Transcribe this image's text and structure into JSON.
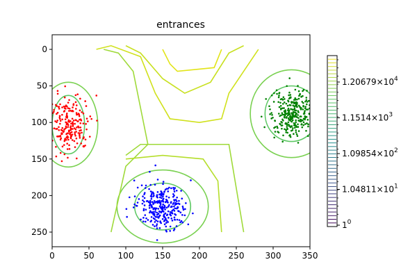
{
  "chart_data": {
    "type": "scatter",
    "title": "entrances",
    "xlabel": "",
    "ylabel": "",
    "xlim": [
      0,
      350
    ],
    "ylim": [
      270,
      -20
    ],
    "y_inverted": true,
    "x_ticks": [
      "0",
      "50",
      "100",
      "150",
      "200",
      "250",
      "300",
      "350"
    ],
    "y_ticks": [
      "0",
      "50",
      "100",
      "150",
      "200",
      "250"
    ],
    "clusters": [
      {
        "color": "#ff0000",
        "center": [
          22,
          103
        ],
        "spread": [
          14,
          20
        ],
        "count": 230
      },
      {
        "color": "#0000ff",
        "center": [
          150,
          215
        ],
        "spread": [
          17,
          14
        ],
        "count": 300
      },
      {
        "color": "#008000",
        "center": [
          325,
          88
        ],
        "spread": [
          14,
          17
        ],
        "count": 300
      }
    ],
    "contour_levels": [
      {
        "color": "#5cc863",
        "rings": [
          {
            "center": [
              22,
              103
            ],
            "r": [
              22,
              40
            ]
          },
          {
            "center": [
              150,
              215
            ],
            "r": [
              38,
              32
            ]
          },
          {
            "center": [
              325,
              88
            ],
            "r": [
              36,
              38
            ]
          }
        ]
      },
      {
        "color": "#7ad151",
        "rings": [
          {
            "center": [
              22,
              103
            ],
            "r": [
              40,
              58
            ]
          },
          {
            "center": [
              150,
              215
            ],
            "r": [
              62,
              50
            ]
          },
          {
            "center": [
              325,
              88
            ],
            "r": [
              56,
              60
            ]
          }
        ]
      }
    ],
    "colorbar": {
      "scale": "log",
      "tick_labels": [
        "10^0",
        "1.04811×10^1",
        "1.09854×10^2",
        "1.1514×10^3",
        "1.20679×10^4"
      ],
      "display": [
        {
          "base": "1",
          "exp": "0"
        },
        {
          "base": "1.04811×10",
          "exp": "1"
        },
        {
          "base": "1.09854×10",
          "exp": "2"
        },
        {
          "base": "1.1514×10",
          "exp": "3"
        },
        {
          "base": "1.20679×10",
          "exp": "4"
        }
      ],
      "colors": [
        "#440154",
        "#3b528b",
        "#21918c",
        "#5ec962",
        "#fde725"
      ]
    }
  }
}
